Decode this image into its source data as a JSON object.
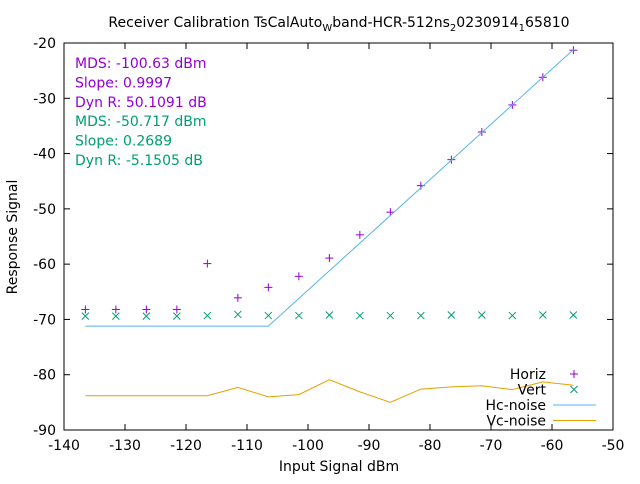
{
  "chart_data": {
    "type": "line",
    "title": {
      "text": "Receiver Calibration TsCalAuto",
      "sub1": "W",
      "mid": "band-HCR-512ns",
      "sub2": "2",
      "tail": "0230914",
      "sub3": "1",
      "end": "65810"
    },
    "xlabel": "Input Signal dBm",
    "ylabel": "Response Signal",
    "xlim": [
      -140,
      -50
    ],
    "ylim": [
      -90,
      -20
    ],
    "xticks": [
      "-140",
      "-130",
      "-120",
      "-110",
      "-100",
      "-90",
      "-80",
      "-70",
      "-60",
      "-50"
    ],
    "yticks": [
      "-90",
      "-80",
      "-70",
      "-60",
      "-50",
      "-40",
      "-30",
      "-20"
    ],
    "grid": false,
    "legend_position": "bottom-right",
    "annotations": [
      {
        "text": "MDS: -100.63 dBm",
        "color": "#9400d3"
      },
      {
        "text": "Slope: 0.9997",
        "color": "#9400d3"
      },
      {
        "text": "Dyn R: 50.1091 dB",
        "color": "#9400d3"
      },
      {
        "text": "MDS: -50.717 dBm",
        "color": "#009e73"
      },
      {
        "text": "Slope: 0.2689",
        "color": "#009e73"
      },
      {
        "text": "Dyn R: -5.1505 dB",
        "color": "#009e73"
      }
    ],
    "series": [
      {
        "name": "Horiz",
        "style": "points",
        "marker": "plus",
        "color": "#9400d3",
        "x": [
          -136.5,
          -131.5,
          -126.5,
          -121.5,
          -116.5,
          -111.5,
          -106.5,
          -101.5,
          -96.5,
          -91.5,
          -86.5,
          -81.5,
          -76.5,
          -71.5,
          -66.5,
          -61.5,
          -56.5
        ],
        "y": [
          -68.2,
          -68.2,
          -68.2,
          -68.2,
          -59.9,
          -66.1,
          -64.2,
          -62.2,
          -58.9,
          -54.7,
          -50.6,
          -45.8,
          -41.1,
          -36.1,
          -31.2,
          -26.2,
          -21.3
        ]
      },
      {
        "name": "Vert",
        "style": "points",
        "marker": "cross",
        "color": "#009e73",
        "x": [
          -136.5,
          -131.5,
          -126.5,
          -121.5,
          -116.5,
          -111.5,
          -106.5,
          -101.5,
          -96.5,
          -91.5,
          -86.5,
          -81.5,
          -76.5,
          -71.5,
          -66.5,
          -61.5,
          -56.5
        ],
        "y": [
          -69.4,
          -69.4,
          -69.4,
          -69.4,
          -69.3,
          -69.1,
          -69.3,
          -69.3,
          -69.2,
          -69.3,
          -69.3,
          -69.3,
          -69.2,
          -69.2,
          -69.3,
          -69.2,
          -69.2
        ]
      },
      {
        "name": "Hc-noise",
        "style": "line",
        "color": "#56b4e9",
        "x": [
          -136.5,
          -106.5,
          -56.5
        ],
        "y": [
          -71.2,
          -71.2,
          -21.2
        ]
      },
      {
        "name": "Vc-noise",
        "style": "line",
        "color": "#e69f00",
        "x": [
          -136.5,
          -131.5,
          -126.5,
          -121.5,
          -116.5,
          -111.5,
          -106.5,
          -101.5,
          -96.5,
          -91.5,
          -86.5,
          -81.5,
          -76.5,
          -71.5,
          -66.5,
          -61.5,
          -56.5
        ],
        "y": [
          -83.8,
          -83.8,
          -83.8,
          -83.8,
          -83.8,
          -82.3,
          -84.0,
          -83.6,
          -80.9,
          -83.1,
          -85.0,
          -82.6,
          -82.2,
          -82.0,
          -82.7,
          -81.3,
          -81.9
        ]
      }
    ]
  }
}
